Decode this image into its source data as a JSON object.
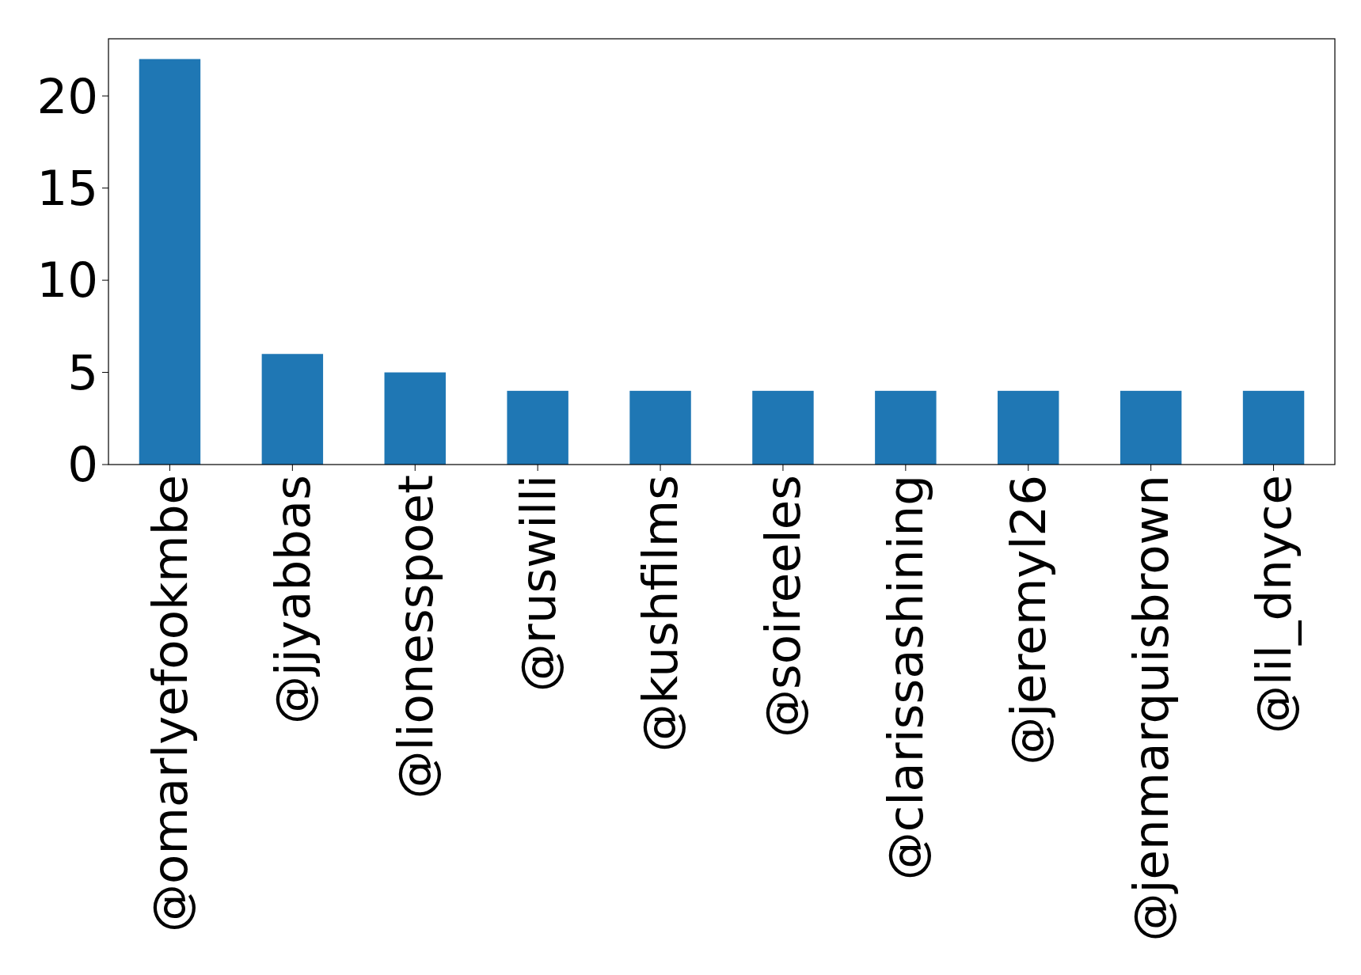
{
  "chart_data": {
    "type": "bar",
    "categories": [
      "@omarlyefookmbe",
      "@jjyabbas",
      "@lionesspoet",
      "@ruswilli",
      "@kushfilms",
      "@soireeles",
      "@clarissashining",
      "@jeremyl26",
      "@jenmarquisbrown",
      "@lil_dnyce"
    ],
    "values": [
      22,
      6,
      5,
      4,
      4,
      4,
      4,
      4,
      4,
      4
    ],
    "color": "#1f77b4",
    "ylim": [
      0,
      23.1
    ],
    "yticks": [
      0,
      5,
      10,
      15,
      20
    ],
    "grid": false
  }
}
